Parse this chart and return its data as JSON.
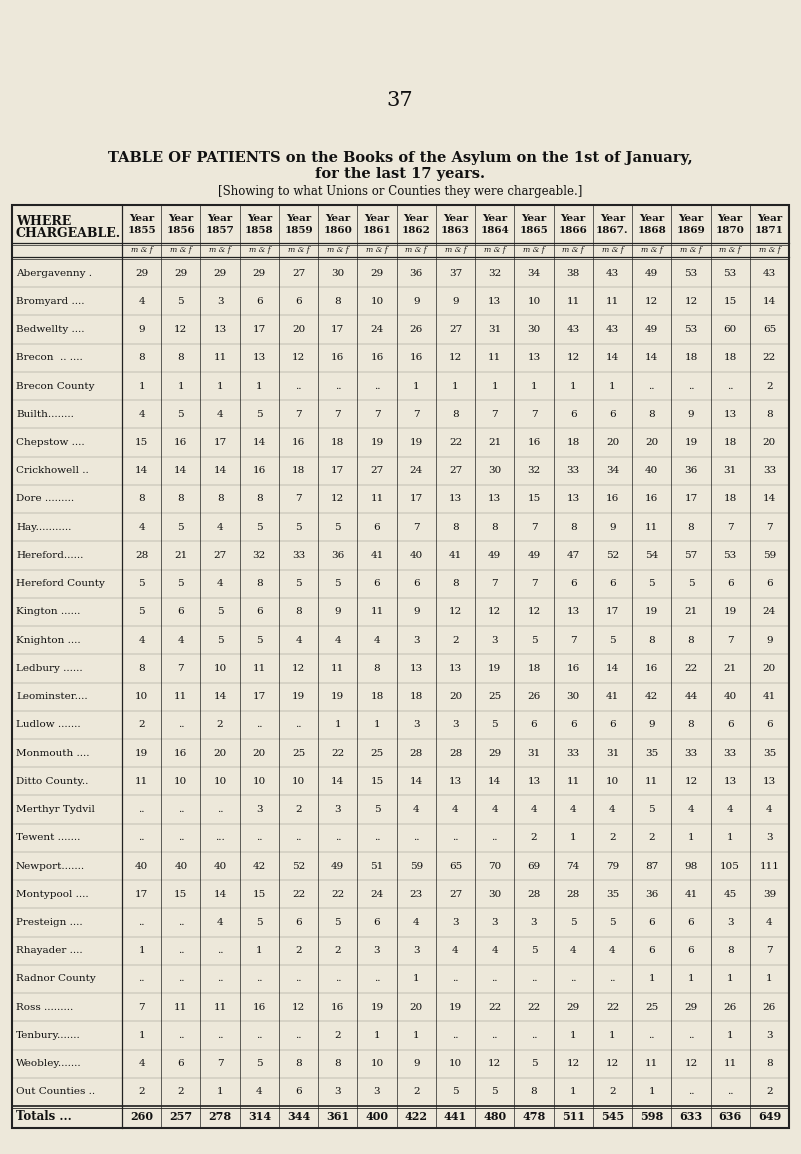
{
  "page_number": "37",
  "title_line1": "TABLE OF PATIENTS on the Books of the Asylum on the 1st of January,",
  "title_line2": "for the last 17 years.",
  "subtitle": "[Showing to what Unions or Counties they were chargeable.]",
  "years": [
    "1855",
    "1856",
    "1857",
    "1858",
    "1859",
    "1860",
    "1861",
    "1862",
    "1863",
    "1864",
    "1865",
    "1866",
    "1867.",
    "1868",
    "1869",
    "1870",
    "1871"
  ],
  "rows": [
    [
      "Abergavenny .",
      "29",
      "29",
      "29",
      "29",
      "27",
      "30",
      "29",
      "36",
      "37",
      "32",
      "34",
      "38",
      "43",
      "49",
      "53",
      "53",
      "43"
    ],
    [
      "Bromyard ....",
      "4",
      "5",
      "3",
      "6",
      "6",
      "8",
      "10",
      "9",
      "9",
      "13",
      "10",
      "11",
      "11",
      "12",
      "12",
      "15",
      "14"
    ],
    [
      "Bedwellty ....",
      "9",
      "12",
      "13",
      "17",
      "20",
      "17",
      "24",
      "26",
      "27",
      "31",
      "30",
      "43",
      "43",
      "49",
      "53",
      "60",
      "65"
    ],
    [
      "Brecon  .. ....",
      "8",
      "8",
      "11",
      "13",
      "12",
      "16",
      "16",
      "16",
      "12",
      "11",
      "13",
      "12",
      "14",
      "14",
      "18",
      "18",
      "22"
    ],
    [
      "Brecon County",
      "1",
      "1",
      "1",
      "1",
      "..",
      "..",
      "..",
      "1",
      "1",
      "1",
      "1",
      "1",
      "1",
      "..",
      "..",
      "..",
      "2"
    ],
    [
      "Builth........",
      "4",
      "5",
      "4",
      "5",
      "7",
      "7",
      "7",
      "7",
      "8",
      "7",
      "7",
      "6",
      "6",
      "8",
      "9",
      "13",
      "8"
    ],
    [
      "Chepstow ....",
      "15",
      "16",
      "17",
      "14",
      "16",
      "18",
      "19",
      "19",
      "22",
      "21",
      "16",
      "18",
      "20",
      "20",
      "19",
      "18",
      "20"
    ],
    [
      "Crickhowell ..",
      "14",
      "14",
      "14",
      "16",
      "18",
      "17",
      "27",
      "24",
      "27",
      "30",
      "32",
      "33",
      "34",
      "40",
      "36",
      "31",
      "33"
    ],
    [
      "Dore .........",
      "8",
      "8",
      "8",
      "8",
      "7",
      "12",
      "11",
      "17",
      "13",
      "13",
      "15",
      "13",
      "16",
      "16",
      "17",
      "18",
      "14"
    ],
    [
      "Hay...........",
      "4",
      "5",
      "4",
      "5",
      "5",
      "5",
      "6",
      "7",
      "8",
      "8",
      "7",
      "8",
      "9",
      "11",
      "8",
      "7",
      "7"
    ],
    [
      "Hereford......",
      "28",
      "21",
      "27",
      "32",
      "33",
      "36",
      "41",
      "40",
      "41",
      "49",
      "49",
      "47",
      "52",
      "54",
      "57",
      "53",
      "59"
    ],
    [
      "Hereford County",
      "5",
      "5",
      "4",
      "8",
      "5",
      "5",
      "6",
      "6",
      "8",
      "7",
      "7",
      "6",
      "6",
      "5",
      "5",
      "6",
      "6"
    ],
    [
      "Kington ......",
      "5",
      "6",
      "5",
      "6",
      "8",
      "9",
      "11",
      "9",
      "12",
      "12",
      "12",
      "13",
      "17",
      "19",
      "21",
      "19",
      "24"
    ],
    [
      "Knighton ....",
      "4",
      "4",
      "5",
      "5",
      "4",
      "4",
      "4",
      "3",
      "2",
      "3",
      "5",
      "7",
      "5",
      "8",
      "8",
      "7",
      "9"
    ],
    [
      "Ledbury ......",
      "8",
      "7",
      "10",
      "11",
      "12",
      "11",
      "8",
      "13",
      "13",
      "19",
      "18",
      "16",
      "14",
      "16",
      "22",
      "21",
      "20"
    ],
    [
      "Leominster....",
      "10",
      "11",
      "14",
      "17",
      "19",
      "19",
      "18",
      "18",
      "20",
      "25",
      "26",
      "30",
      "41",
      "42",
      "44",
      "40",
      "41"
    ],
    [
      "Ludlow .......",
      "2",
      "..",
      "2",
      "..",
      "..",
      "1",
      "1",
      "3",
      "3",
      "5",
      "6",
      "6",
      "6",
      "9",
      "8",
      "6",
      "6"
    ],
    [
      "Monmouth ....",
      "19",
      "16",
      "20",
      "20",
      "25",
      "22",
      "25",
      "28",
      "28",
      "29",
      "31",
      "33",
      "31",
      "35",
      "33",
      "33",
      "35"
    ],
    [
      "Ditto County..",
      "11",
      "10",
      "10",
      "10",
      "10",
      "14",
      "15",
      "14",
      "13",
      "14",
      "13",
      "11",
      "10",
      "11",
      "12",
      "13",
      "13"
    ],
    [
      "Merthyr Tydvil",
      "..",
      "..",
      "..",
      "3",
      "2",
      "3",
      "5",
      "4",
      "4",
      "4",
      "4",
      "4",
      "4",
      "5",
      "4",
      "4",
      "4"
    ],
    [
      "Tewent .......",
      "..",
      "..",
      "...",
      "..",
      "..",
      "..",
      "..",
      "..",
      "..",
      "..",
      "2",
      "1",
      "2",
      "2",
      "1",
      "1",
      "3"
    ],
    [
      "Newport.......",
      "40",
      "40",
      "40",
      "42",
      "52",
      "49",
      "51",
      "59",
      "65",
      "70",
      "69",
      "74",
      "79",
      "87",
      "98",
      "105",
      "111"
    ],
    [
      "Montypool ....",
      "17",
      "15",
      "14",
      "15",
      "22",
      "22",
      "24",
      "23",
      "27",
      "30",
      "28",
      "28",
      "35",
      "36",
      "41",
      "45",
      "39"
    ],
    [
      "Presteign ....",
      "..",
      "..",
      "4",
      "5",
      "6",
      "5",
      "6",
      "4",
      "3",
      "3",
      "3",
      "5",
      "5",
      "6",
      "6",
      "3",
      "4"
    ],
    [
      "Rhayader ....",
      "1",
      "..",
      "..",
      "1",
      "2",
      "2",
      "3",
      "3",
      "4",
      "4",
      "5",
      "4",
      "4",
      "6",
      "6",
      "8",
      "7"
    ],
    [
      "Radnor County",
      "..",
      "..",
      "..",
      "..",
      "..",
      "..",
      "..",
      "1",
      "..",
      "..",
      "..",
      "..",
      "..",
      "1",
      "1",
      "1",
      "1"
    ],
    [
      "Ross .........",
      "7",
      "11",
      "11",
      "16",
      "12",
      "16",
      "19",
      "20",
      "19",
      "22",
      "22",
      "29",
      "22",
      "25",
      "29",
      "26",
      "26"
    ],
    [
      "Tenbury.......",
      "1",
      "..",
      "..",
      "..",
      "..",
      "2",
      "1",
      "1",
      "..",
      "..",
      "..",
      "1",
      "1",
      "..",
      "..",
      "1",
      "3"
    ],
    [
      "Weobley.......",
      "4",
      "6",
      "7",
      "5",
      "8",
      "8",
      "10",
      "9",
      "10",
      "12",
      "5",
      "12",
      "12",
      "11",
      "12",
      "11",
      "8"
    ],
    [
      "Out Counties ..",
      "2",
      "2",
      "1",
      "4",
      "6",
      "3",
      "3",
      "2",
      "5",
      "5",
      "8",
      "1",
      "2",
      "1",
      "..",
      "..",
      "2"
    ]
  ],
  "totals": [
    "260",
    "257",
    "278",
    "314",
    "344",
    "361",
    "400",
    "422",
    "441",
    "480",
    "478",
    "511",
    "545",
    "598",
    "633",
    "636",
    "649"
  ],
  "bg_color": "#ede8da",
  "text_color": "#111111",
  "line_color": "#222222"
}
